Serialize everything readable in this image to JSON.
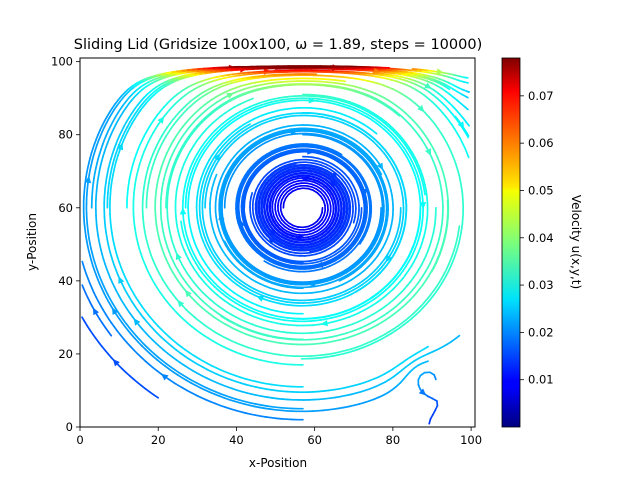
{
  "chart_data": {
    "type": "streamplot",
    "title": "Sliding Lid (Gridsize 100x100,  ω = 1.89, steps = 10000)",
    "xlabel": "x-Position",
    "ylabel": "y-Position",
    "xlim": [
      0,
      101
    ],
    "ylim": [
      0,
      101
    ],
    "xticks": [
      0,
      20,
      40,
      60,
      80,
      100
    ],
    "yticks": [
      0,
      20,
      40,
      60,
      80,
      100
    ],
    "grid": false,
    "colormap": "jet",
    "colorbar": {
      "label": "Velocity u(x,y,t)",
      "min": 0.0,
      "max": 0.078,
      "ticks": [
        0.01,
        0.02,
        0.03,
        0.04,
        0.05,
        0.06,
        0.07
      ]
    },
    "vortex_center": [
      57,
      60
    ],
    "secondary_vortex_center": [
      89,
      13
    ],
    "lid_velocity_direction": "+x"
  }
}
